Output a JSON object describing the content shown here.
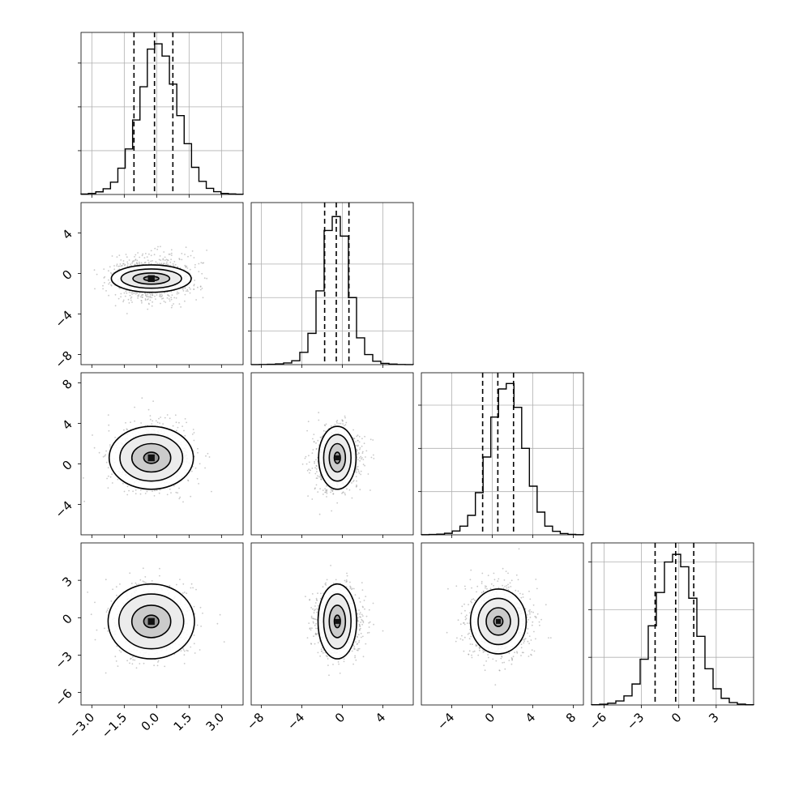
{
  "chart_data": {
    "type": "corner",
    "style": {
      "grid": true,
      "line_color": "#000000",
      "scatter_color": "#9a9a9a"
    },
    "parameters": [
      {
        "mean": -0.25,
        "sd": 0.95,
        "quantiles": [
          -1.05,
          -0.1,
          0.75
        ],
        "range": [
          -3.5,
          4.0
        ],
        "ticks": [
          -3.0,
          -1.5,
          0.0,
          1.5,
          3.0
        ],
        "tick_labels": [
          "−3.0",
          "−1.5",
          "0.0",
          "1.5",
          "3.0"
        ]
      },
      {
        "mean": -0.5,
        "sd": 1.15,
        "quantiles": [
          -1.75,
          -0.6,
          0.65
        ],
        "range": [
          -9.0,
          7.0
        ],
        "ticks": [
          -8,
          -4,
          0,
          4
        ],
        "tick_labels": [
          "−8",
          "−4",
          "0",
          "4"
        ]
      },
      {
        "mean": 0.6,
        "sd": 1.6,
        "quantiles": [
          -0.95,
          0.55,
          2.1
        ],
        "range": [
          -7.0,
          9.0
        ],
        "ticks": [
          -4,
          0,
          4,
          8
        ],
        "tick_labels": [
          "−4",
          "0",
          "4",
          "8"
        ]
      },
      {
        "mean": -0.3,
        "sd": 1.45,
        "quantiles": [
          -1.9,
          -0.25,
          1.2
        ],
        "range": [
          -7.0,
          6.0
        ],
        "ticks": [
          -6,
          -3,
          0,
          3
        ],
        "tick_labels": [
          "−6",
          "−3",
          "0",
          "3"
        ]
      }
    ],
    "histograms": [
      {
        "bins": [
          -3.5,
          4.0
        ],
        "counts": [
          5,
          12,
          30,
          65,
          140,
          300,
          520,
          850,
          1230,
          1660,
          1720,
          1580,
          1260,
          900,
          580,
          310,
          150,
          70,
          32,
          12,
          6,
          3
        ],
        "ylim": [
          0,
          1850
        ],
        "yticks": [
          500,
          1000,
          1500
        ]
      },
      {
        "bins": [
          -9.0,
          7.0
        ],
        "counts": [
          1,
          3,
          6,
          14,
          30,
          70,
          220,
          560,
          1320,
          2400,
          2650,
          2300,
          1200,
          480,
          180,
          60,
          22,
          9,
          3,
          1
        ],
        "ylim": [
          0,
          2900
        ],
        "yticks": [
          600,
          1200,
          1800
        ]
      },
      {
        "bins": [
          -7.0,
          9.0
        ],
        "counts": [
          1,
          3,
          6,
          14,
          35,
          80,
          180,
          390,
          720,
          1090,
          1350,
          1400,
          1180,
          800,
          450,
          210,
          80,
          32,
          12,
          4,
          1
        ],
        "ylim": [
          0,
          1500
        ],
        "yticks": [
          400,
          800,
          1200
        ]
      },
      {
        "bins": [
          -7.0,
          6.0
        ],
        "counts": [
          3,
          8,
          18,
          42,
          95,
          220,
          480,
          830,
          1180,
          1500,
          1580,
          1450,
          1120,
          720,
          380,
          170,
          70,
          25,
          9,
          3
        ],
        "ylim": [
          0,
          1700
        ],
        "yticks": [
          500,
          1000,
          1500
        ]
      }
    ],
    "pairs": [
      {
        "x": 0,
        "y": 1,
        "contour_half_widths": [
          [
            0.35,
            0.22
          ],
          [
            0.85,
            0.55
          ],
          [
            1.4,
            0.95
          ],
          [
            1.85,
            1.35
          ]
        ]
      },
      {
        "x": 0,
        "y": 2,
        "contour_half_widths": [
          [
            0.35,
            0.55
          ],
          [
            0.9,
            1.4
          ],
          [
            1.45,
            2.3
          ],
          [
            1.95,
            3.1
          ]
        ]
      },
      {
        "x": 1,
        "y": 2,
        "contour_half_widths": [
          [
            0.3,
            0.55
          ],
          [
            0.8,
            1.4
          ],
          [
            1.35,
            2.3
          ],
          [
            1.85,
            3.1
          ]
        ]
      },
      {
        "x": 0,
        "y": 3,
        "contour_half_widths": [
          [
            0.35,
            0.5
          ],
          [
            0.9,
            1.3
          ],
          [
            1.5,
            2.2
          ],
          [
            2.0,
            3.0
          ]
        ]
      },
      {
        "x": 1,
        "y": 3,
        "contour_half_widths": [
          [
            0.3,
            0.5
          ],
          [
            0.8,
            1.3
          ],
          [
            1.35,
            2.2
          ],
          [
            1.9,
            3.0
          ]
        ]
      },
      {
        "x": 2,
        "y": 3,
        "contour_half_widths": [
          [
            0.45,
            0.4
          ],
          [
            1.2,
            1.1
          ],
          [
            2.0,
            1.85
          ],
          [
            2.75,
            2.6
          ]
        ]
      }
    ]
  }
}
